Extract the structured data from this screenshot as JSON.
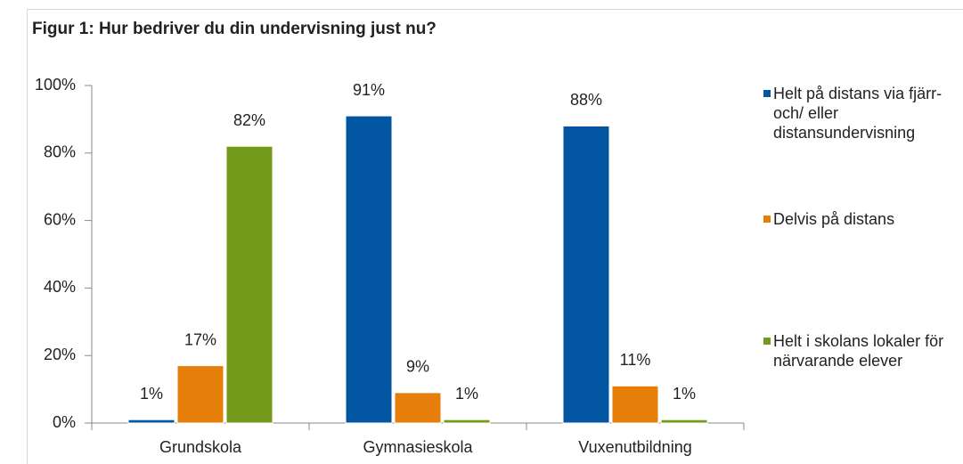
{
  "chart_data": {
    "type": "bar",
    "title": "Figur 1: Hur bedriver du din undervisning just nu?",
    "categories": [
      "Grundskola",
      "Gymnasieskola",
      "Vuxenutbildning"
    ],
    "series": [
      {
        "name": "Helt på distans via fjärr- och/ eller distansundervisning",
        "color": "#0356a2",
        "values": [
          1,
          91,
          88
        ],
        "value_labels": [
          "1%",
          "91%",
          "88%"
        ]
      },
      {
        "name": "Delvis på distans",
        "color": "#e57f0a",
        "values": [
          17,
          9,
          11
        ],
        "value_labels": [
          "17%",
          "9%",
          "11%"
        ]
      },
      {
        "name": "Helt i skolans lokaler för närvarande elever",
        "color": "#739a1b",
        "values": [
          82,
          1,
          1
        ],
        "value_labels": [
          "82%",
          "1%",
          "1%"
        ]
      }
    ],
    "ylim": [
      0,
      100
    ],
    "yticks": [
      {
        "value": 0,
        "label": "0%"
      },
      {
        "value": 20,
        "label": "20%"
      },
      {
        "value": 40,
        "label": "40%"
      },
      {
        "value": 60,
        "label": "60%"
      },
      {
        "value": 80,
        "label": "80%"
      },
      {
        "value": 100,
        "label": "100%"
      }
    ],
    "legend": "right"
  }
}
